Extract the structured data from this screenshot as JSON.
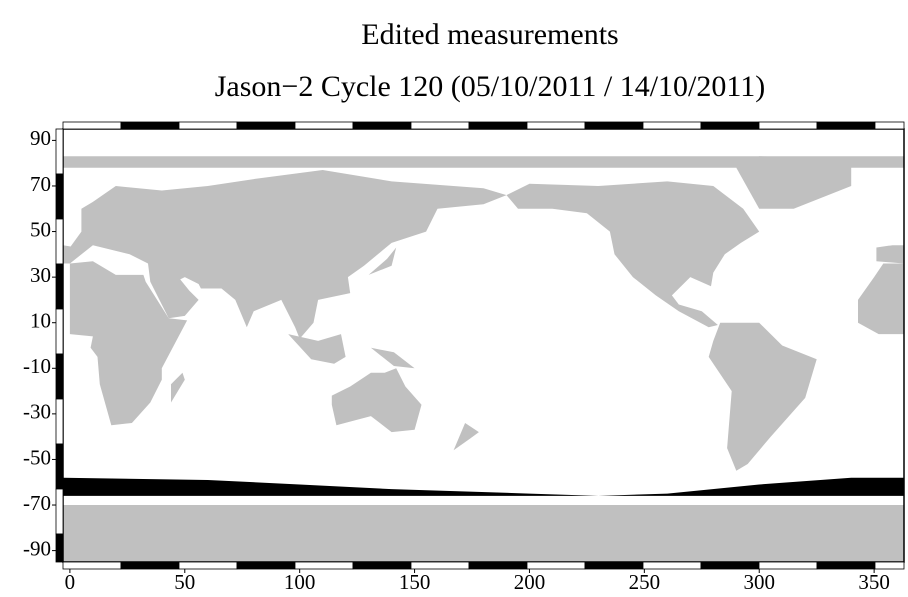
{
  "chart_data": {
    "type": "map",
    "title": "Edited measurements",
    "subtitle": "Jason−2 Cycle 120 (05/10/2011 / 14/10/2011)",
    "xlim": [
      -3,
      363
    ],
    "ylim": [
      -95,
      95
    ],
    "xticks": [
      0,
      50,
      100,
      150,
      200,
      250,
      300,
      350
    ],
    "yticks": [
      -90,
      -70,
      -50,
      -30,
      -10,
      10,
      30,
      50,
      70,
      90
    ],
    "land_color": "#c0c0c0"
  }
}
